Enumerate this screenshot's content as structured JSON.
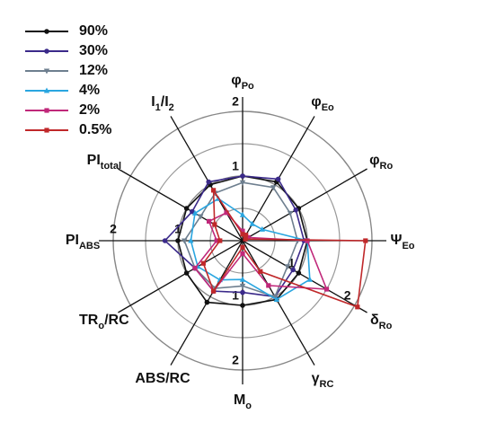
{
  "chart_data": {
    "type": "radar",
    "axes": [
      [
        {
          "t": "φ"
        },
        {
          "sub": "Po"
        }
      ],
      [
        {
          "t": "φ"
        },
        {
          "sub": "Eo"
        }
      ],
      [
        {
          "t": "φ"
        },
        {
          "sub": "Ro"
        }
      ],
      [
        {
          "t": "Ψ"
        },
        {
          "sub": "Eo"
        }
      ],
      [
        {
          "t": "δ"
        },
        {
          "sub": "Ro"
        }
      ],
      [
        {
          "t": "γ"
        },
        {
          "sub": "RC"
        }
      ],
      [
        {
          "t": "M"
        },
        {
          "sub": "o"
        }
      ],
      [
        {
          "t": "ABS/RC"
        }
      ],
      [
        {
          "t": "TR"
        },
        {
          "sub": "o"
        },
        {
          "t": "/RC"
        }
      ],
      [
        {
          "t": "PI"
        },
        {
          "sub": "ABS"
        }
      ],
      [
        {
          "t": "PI"
        },
        {
          "sub": "total"
        }
      ],
      [
        {
          "t": "I"
        },
        {
          "sub": "1"
        },
        {
          "t": "/I"
        },
        {
          "sub": "2"
        }
      ]
    ],
    "rlim": [
      0,
      2
    ],
    "rticks": [
      1,
      2
    ],
    "minor_rticks": [
      0.5,
      1.5
    ],
    "grid": true,
    "legend": "upper left",
    "series": [
      {
        "name": "90%",
        "color": "#111111",
        "marker": "circle",
        "values": [
          1.0,
          1.05,
          1.0,
          1.0,
          1.0,
          1.05,
          1.0,
          1.1,
          1.0,
          1.0,
          1.0,
          1.0
        ]
      },
      {
        "name": "30%",
        "color": "#3b2a8a",
        "marker": "circle",
        "values": [
          1.0,
          1.1,
          0.95,
          0.95,
          0.9,
          1.0,
          0.8,
          0.9,
          0.85,
          1.2,
          0.9,
          1.05
        ]
      },
      {
        "name": "12%",
        "color": "#6e7f8f",
        "marker": "triangle-down",
        "values": [
          0.9,
          0.95,
          0.85,
          0.85,
          0.8,
          1.0,
          0.7,
          0.85,
          0.85,
          0.9,
          0.75,
          0.85
        ]
      },
      {
        "name": "4%",
        "color": "#2aa6e0",
        "marker": "triangle-up",
        "values": [
          0.4,
          0.3,
          0.35,
          1.0,
          1.2,
          1.05,
          0.6,
          0.7,
          0.8,
          0.8,
          0.85,
          0.75
        ]
      },
      {
        "name": "2%",
        "color": "#c0287a",
        "marker": "square",
        "values": [
          0.15,
          0.1,
          0.1,
          1.0,
          1.5,
          0.8,
          0.2,
          0.9,
          0.85,
          0.4,
          0.6,
          0.5
        ]
      },
      {
        "name": "0.5%",
        "color": "#c0282a",
        "marker": "square",
        "values": [
          0.1,
          0.1,
          0.05,
          1.9,
          2.05,
          0.55,
          0.1,
          0.9,
          0.7,
          0.35,
          0.5,
          0.9
        ]
      }
    ]
  }
}
